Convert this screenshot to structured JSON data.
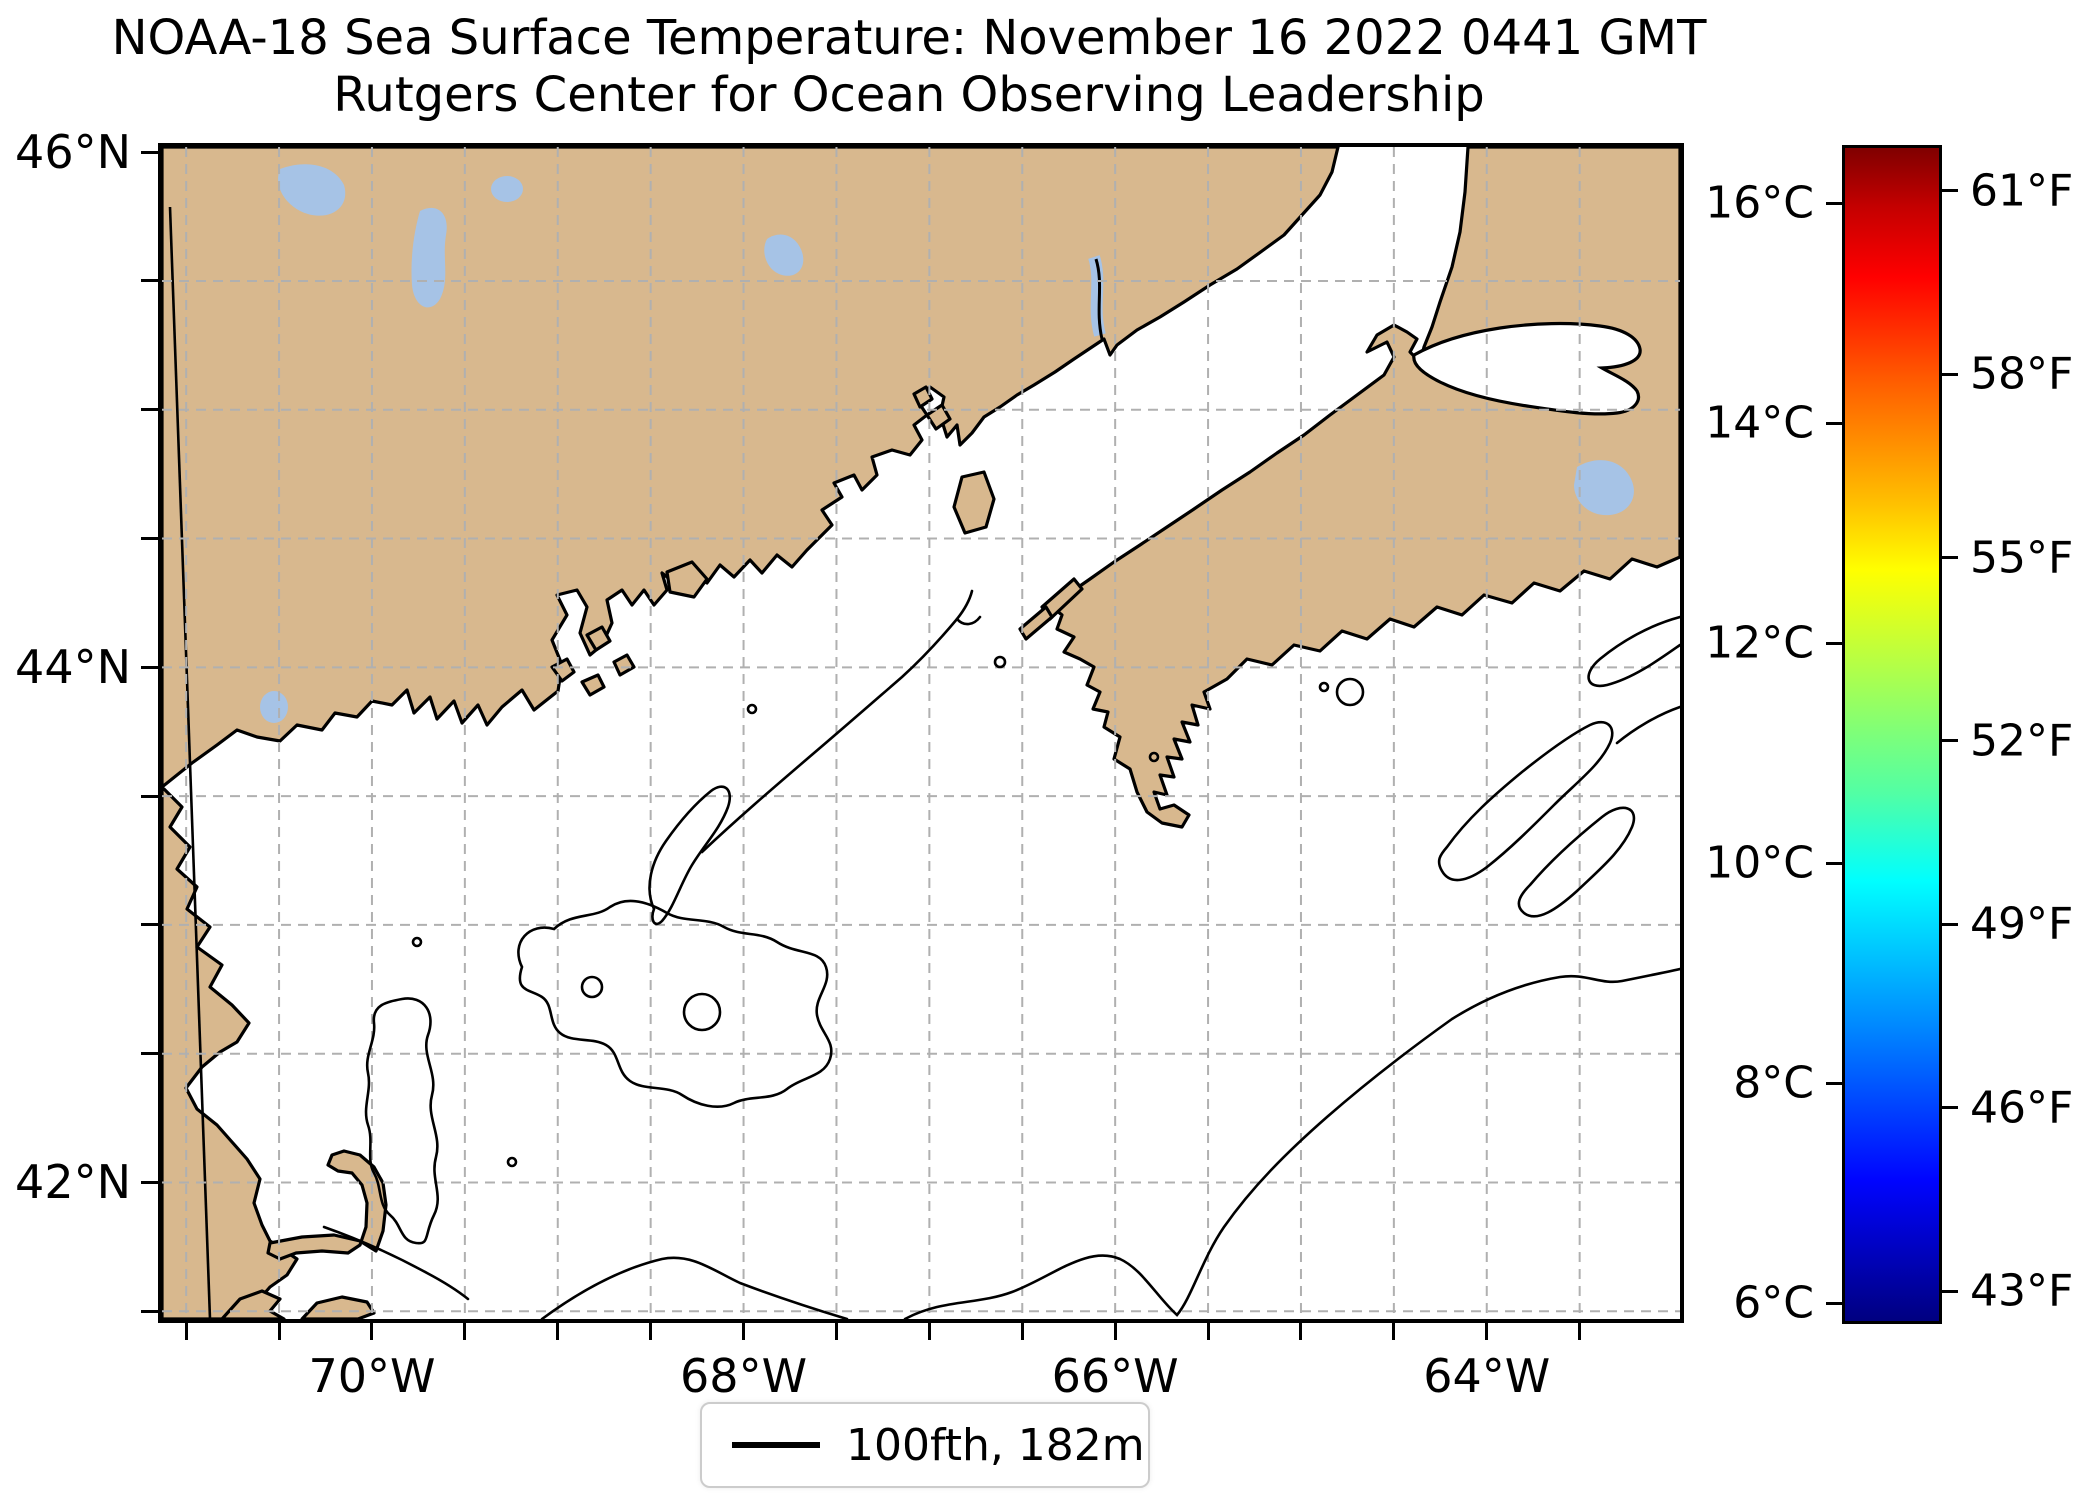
{
  "title": {
    "line1": "NOAA-18 Sea Surface Temperature: November 16 2022 0441 GMT",
    "line2": "Rutgers Center for Ocean Observing Leadership"
  },
  "chart_data": {
    "type": "map",
    "subject": "sea surface temperature map with coastlines and 100 fathom isobath",
    "x_axis": {
      "range_deg": [
        -71.13,
        -62.96
      ],
      "major_ticks": [
        {
          "value": -70,
          "label": "70°W"
        },
        {
          "value": -68,
          "label": "68°W"
        },
        {
          "value": -66,
          "label": "66°W"
        },
        {
          "value": -64,
          "label": "64°W"
        }
      ],
      "minor_tick_step_deg": 0.5
    },
    "y_axis": {
      "range_deg": [
        41.47,
        46.02
      ],
      "major_ticks": [
        {
          "value": 46,
          "label": "46°N"
        },
        {
          "value": 44,
          "label": "44°N"
        },
        {
          "value": 42,
          "label": "42°N"
        }
      ],
      "minor_tick_step_deg": 0.5
    },
    "grid": {
      "style": "dashed",
      "interval_deg": 0.5
    },
    "colorbar": {
      "colormap": "jet",
      "range_celsius": [
        5.84,
        16.5
      ],
      "celsius_ticks": [
        {
          "value": 16,
          "label": "16°C"
        },
        {
          "value": 14,
          "label": "14°C"
        },
        {
          "value": 12,
          "label": "12°C"
        },
        {
          "value": 10,
          "label": "10°C"
        },
        {
          "value": 8,
          "label": "8°C"
        },
        {
          "value": 6,
          "label": "6°C"
        }
      ],
      "fahrenheit_ticks": [
        {
          "value": 61,
          "label": "61°F"
        },
        {
          "value": 58,
          "label": "58°F"
        },
        {
          "value": 55,
          "label": "55°F"
        },
        {
          "value": 52,
          "label": "52°F"
        },
        {
          "value": 49,
          "label": "49°F"
        },
        {
          "value": 46,
          "label": "46°F"
        },
        {
          "value": 43,
          "label": "43°F"
        }
      ]
    },
    "legend": {
      "entries": [
        {
          "swatch": "line",
          "color": "#000000",
          "label": "100fth, 182m"
        }
      ]
    },
    "colors": {
      "land": "#d8b88e",
      "lake": "#a6c3e6",
      "ocean": "#ffffff",
      "coastline": "#000000",
      "isobath": "#000000",
      "gridline": "#b0b0b0",
      "frame": "#000000"
    }
  }
}
